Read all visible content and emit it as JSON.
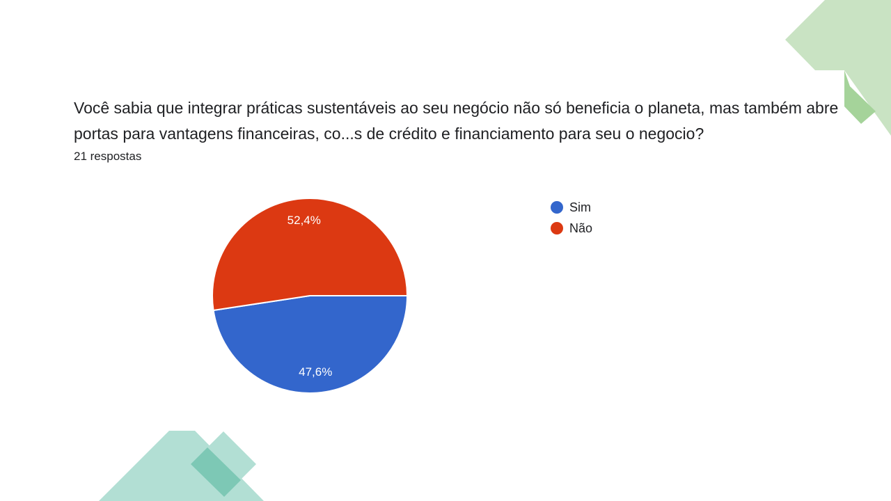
{
  "question": {
    "title": "Você sabia que integrar práticas sustentáveis ao seu negócio não só beneficia o planeta, mas também abre portas para vantagens financeiras, co...s de crédito e financiamento para seu o negocio?",
    "responses": "21 respostas"
  },
  "colors": {
    "sim": "#3366CC",
    "nao": "#DC3912",
    "deco_green": "#C9E3C3",
    "deco_green_dark": "#A5D39A",
    "deco_teal": "#B2DFD4",
    "deco_teal_dark": "#7DC8B5"
  },
  "chart_data": {
    "type": "pie",
    "slices": [
      {
        "label": "Sim",
        "value": 47.6,
        "display": "47,6%",
        "color": "#3366CC"
      },
      {
        "label": "Não",
        "value": 52.4,
        "display": "52,4%",
        "color": "#DC3912"
      }
    ],
    "legend_position": "right"
  }
}
